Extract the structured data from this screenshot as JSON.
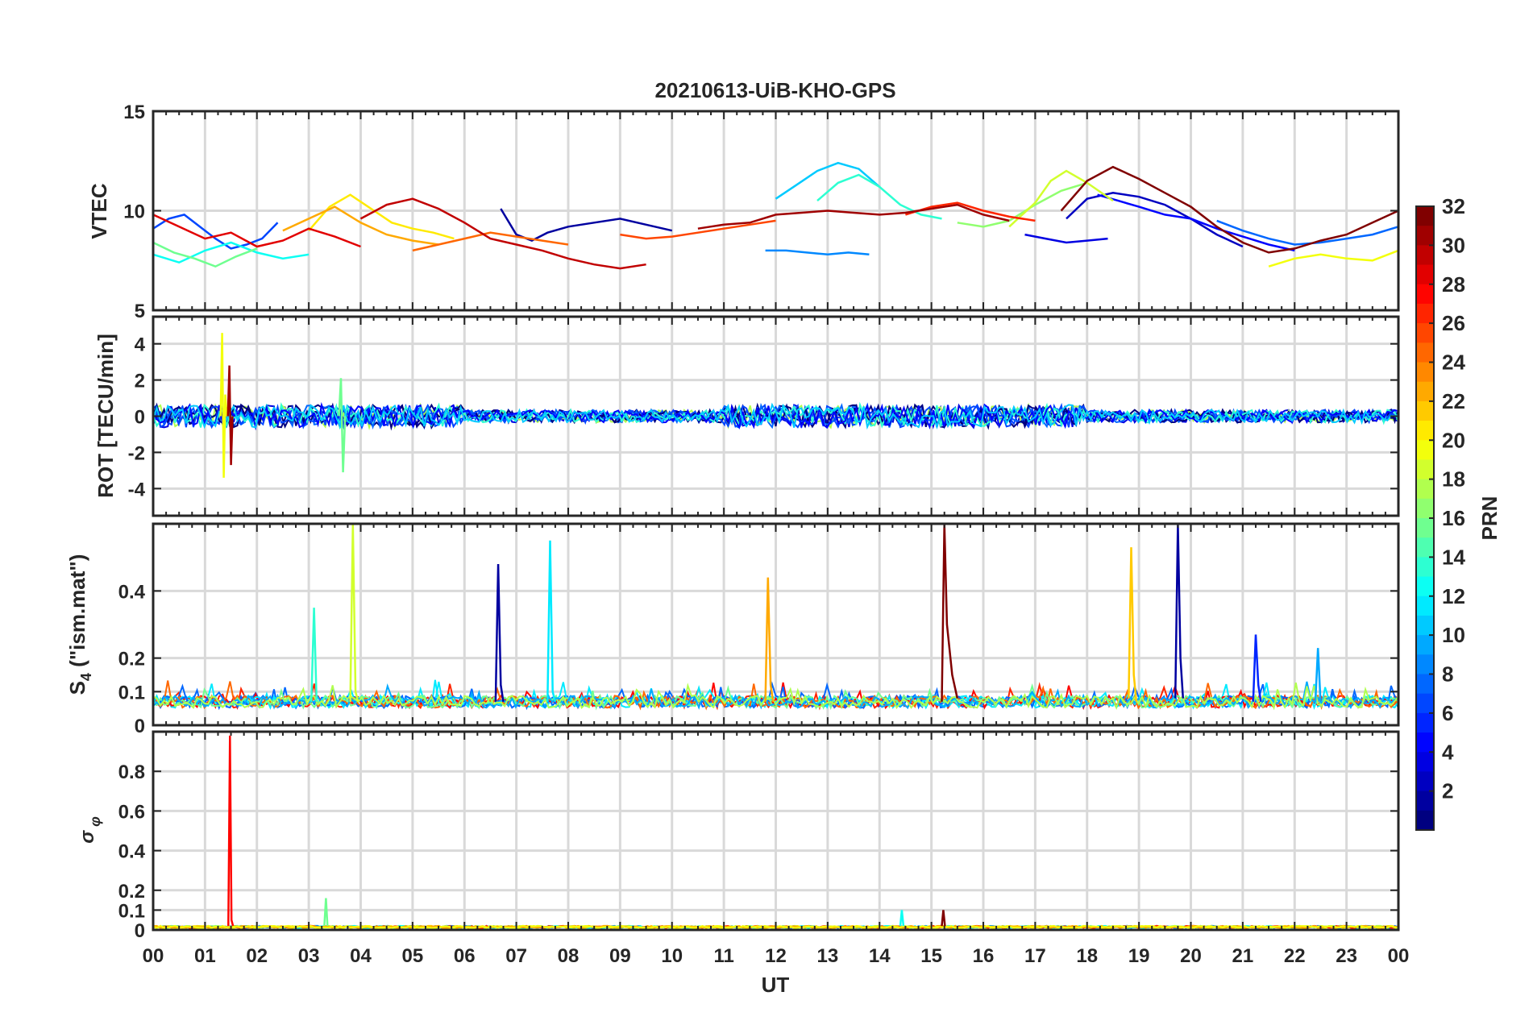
{
  "title": "20210613-UiB-KHO-GPS",
  "xlabel": "UT",
  "x_ticks": [
    "00",
    "01",
    "02",
    "03",
    "04",
    "05",
    "06",
    "07",
    "08",
    "09",
    "10",
    "11",
    "12",
    "13",
    "14",
    "15",
    "16",
    "17",
    "18",
    "19",
    "20",
    "21",
    "22",
    "23",
    "00"
  ],
  "colorbar": {
    "label": "PRN",
    "range": [
      1,
      32
    ],
    "ticks": [
      "2",
      "4",
      "6",
      "8",
      "10",
      "12",
      "14",
      "16",
      "18",
      "20",
      "22",
      "24",
      "26",
      "28",
      "30",
      "32"
    ],
    "colormap": "jet"
  },
  "chart_data": [
    {
      "type": "line",
      "panel": "VTEC",
      "ylabel": "VTEC",
      "xlim_hours": [
        0,
        24
      ],
      "ylim": [
        5,
        15
      ],
      "y_ticks": [
        "5",
        "10",
        "15"
      ],
      "grid": true,
      "series": [
        {
          "prn": 2,
          "x": [
            6.7,
            7.0,
            7.3,
            7.6,
            8.0,
            8.5,
            9.0,
            9.5,
            10.0
          ],
          "y": [
            10.1,
            8.8,
            8.5,
            8.9,
            9.2,
            9.4,
            9.6,
            9.3,
            9.0
          ]
        },
        {
          "prn": 3,
          "x": [
            17.6,
            18.0,
            18.5,
            19.0,
            19.5,
            20.0,
            20.5,
            21.0
          ],
          "y": [
            9.6,
            10.6,
            10.9,
            10.7,
            10.3,
            9.6,
            8.8,
            8.2
          ]
        },
        {
          "prn": 4,
          "x": [
            16.8,
            17.2,
            17.6,
            18.0,
            18.4
          ],
          "y": [
            8.8,
            8.6,
            8.4,
            8.5,
            8.6
          ]
        },
        {
          "prn": 5,
          "x": [
            18.2,
            18.6,
            19.0,
            19.5,
            20.0,
            20.5,
            21.0,
            21.5,
            22.0
          ],
          "y": [
            10.8,
            10.5,
            10.2,
            9.8,
            9.6,
            9.1,
            8.7,
            8.3,
            8.0
          ]
        },
        {
          "prn": 7,
          "x": [
            0.0,
            0.3,
            0.6,
            0.9,
            1.2,
            1.5,
            1.8,
            2.1,
            2.4
          ],
          "y": [
            9.1,
            9.6,
            9.8,
            9.2,
            8.6,
            8.1,
            8.3,
            8.6,
            9.4
          ]
        },
        {
          "prn": 8,
          "x": [
            20.5,
            21.0,
            21.5,
            22.0,
            22.5,
            23.0,
            23.5,
            24.0
          ],
          "y": [
            9.5,
            9.0,
            8.6,
            8.3,
            8.4,
            8.6,
            8.8,
            9.2
          ]
        },
        {
          "prn": 9,
          "x": [
            11.8,
            12.2,
            12.6,
            13.0,
            13.4,
            13.8
          ],
          "y": [
            8.0,
            8.0,
            7.9,
            7.8,
            7.9,
            7.8
          ]
        },
        {
          "prn": 11,
          "x": [
            12.0,
            12.4,
            12.8,
            13.2,
            13.6,
            14.0
          ],
          "y": [
            10.6,
            11.3,
            12.0,
            12.4,
            12.1,
            11.2
          ]
        },
        {
          "prn": 13,
          "x": [
            0.0,
            0.5,
            1.0,
            1.5,
            2.0,
            2.5,
            3.0
          ],
          "y": [
            7.8,
            7.4,
            8.0,
            8.4,
            7.9,
            7.6,
            7.8
          ]
        },
        {
          "prn": 14,
          "x": [
            12.8,
            13.2,
            13.6,
            14.0,
            14.4,
            14.8,
            15.2
          ],
          "y": [
            10.5,
            11.4,
            11.8,
            11.2,
            10.3,
            9.8,
            9.6
          ]
        },
        {
          "prn": 16,
          "x": [
            0.0,
            0.4,
            0.8,
            1.2,
            1.6,
            2.0
          ],
          "y": [
            8.4,
            7.9,
            7.6,
            7.2,
            7.7,
            8.1
          ]
        },
        {
          "prn": 17,
          "x": [
            15.5,
            16.0,
            16.5,
            17.0,
            17.5,
            18.0
          ],
          "y": [
            9.4,
            9.2,
            9.5,
            10.3,
            11.0,
            11.4
          ]
        },
        {
          "prn": 19,
          "x": [
            16.5,
            17.0,
            17.3,
            17.6,
            18.0,
            18.5
          ],
          "y": [
            9.2,
            10.4,
            11.5,
            12.0,
            11.4,
            10.5
          ]
        },
        {
          "prn": 20,
          "x": [
            21.5,
            22.0,
            22.5,
            23.0,
            23.5,
            24.0
          ],
          "y": [
            7.2,
            7.6,
            7.8,
            7.6,
            7.5,
            8.0
          ]
        },
        {
          "prn": 21,
          "x": [
            3.0,
            3.4,
            3.8,
            4.2,
            4.6,
            5.0,
            5.4,
            5.8
          ],
          "y": [
            9.0,
            10.2,
            10.8,
            10.1,
            9.4,
            9.1,
            8.9,
            8.6
          ]
        },
        {
          "prn": 23,
          "x": [
            2.5,
            3.0,
            3.5,
            4.0,
            4.5,
            5.0,
            5.5
          ],
          "y": [
            9.0,
            9.6,
            10.2,
            9.4,
            8.8,
            8.5,
            8.3
          ]
        },
        {
          "prn": 25,
          "x": [
            5.0,
            5.5,
            6.0,
            6.5,
            7.0,
            7.5,
            8.0
          ],
          "y": [
            8.0,
            8.3,
            8.6,
            8.9,
            8.7,
            8.5,
            8.3
          ]
        },
        {
          "prn": 26,
          "x": [
            9.0,
            9.5,
            10.0,
            10.5,
            11.0,
            11.5,
            12.0
          ],
          "y": [
            8.8,
            8.6,
            8.7,
            8.9,
            9.1,
            9.3,
            9.5
          ]
        },
        {
          "prn": 27,
          "x": [
            14.5,
            15.0,
            15.5,
            16.0,
            16.5,
            17.0
          ],
          "y": [
            9.8,
            10.2,
            10.4,
            10.0,
            9.7,
            9.5
          ]
        },
        {
          "prn": 29,
          "x": [
            0.0,
            0.5,
            1.0,
            1.5,
            2.0,
            2.5,
            3.0,
            3.5,
            4.0
          ],
          "y": [
            9.8,
            9.2,
            8.6,
            8.9,
            8.2,
            8.5,
            9.1,
            8.7,
            8.2
          ]
        },
        {
          "prn": 30,
          "x": [
            4.0,
            4.5,
            5.0,
            5.5,
            6.0,
            6.5,
            7.0,
            7.5,
            8.0,
            8.5,
            9.0,
            9.5
          ],
          "y": [
            9.6,
            10.3,
            10.6,
            10.1,
            9.4,
            8.6,
            8.3,
            8.0,
            7.6,
            7.3,
            7.1,
            7.3
          ]
        },
        {
          "prn": 31,
          "x": [
            10.5,
            11.0,
            11.5,
            12.0,
            12.5,
            13.0,
            13.5,
            14.0,
            14.5,
            15.0,
            15.5,
            16.0,
            16.5
          ],
          "y": [
            9.1,
            9.3,
            9.4,
            9.8,
            9.9,
            10.0,
            9.9,
            9.8,
            9.9,
            10.1,
            10.3,
            9.8,
            9.5
          ]
        },
        {
          "prn": 32,
          "x": [
            17.5,
            18.0,
            18.5,
            19.0,
            19.5,
            20.0,
            20.5,
            21.0,
            21.5,
            22.0,
            22.5,
            23.0,
            23.5,
            24.0
          ],
          "y": [
            10.0,
            11.5,
            12.2,
            11.6,
            10.9,
            10.2,
            9.2,
            8.4,
            7.9,
            8.1,
            8.5,
            8.8,
            9.4,
            10.0
          ]
        }
      ]
    },
    {
      "type": "line",
      "panel": "ROT",
      "ylabel": "ROT [TECU/min]",
      "xlim_hours": [
        0,
        24
      ],
      "ylim": [
        -5.5,
        5.5
      ],
      "y_ticks": [
        "-4",
        "-2",
        "0",
        "2",
        "4"
      ],
      "grid": true,
      "series": [
        {
          "prn": 20,
          "x": [
            1.3,
            1.33,
            1.36,
            1.39,
            1.42
          ],
          "y": [
            0.0,
            4.6,
            -3.4,
            1.2,
            0.0
          ]
        },
        {
          "prn": 31,
          "x": [
            1.44,
            1.47,
            1.5,
            1.53
          ],
          "y": [
            0.0,
            2.8,
            -2.7,
            0.0
          ]
        },
        {
          "prn": 16,
          "x": [
            3.58,
            3.62,
            3.66,
            3.7
          ],
          "y": [
            0.0,
            2.1,
            -3.1,
            0.0
          ]
        }
      ]
    },
    {
      "type": "line",
      "panel": "S4",
      "ylabel": "S4 (\"ism.mat\")",
      "xlim_hours": [
        0,
        24
      ],
      "ylim": [
        0,
        0.6
      ],
      "y_ticks": [
        "0",
        "0.1",
        "0.2",
        "0.4"
      ],
      "grid": true,
      "series": [
        {
          "prn": 14,
          "x": [
            3.05,
            3.1,
            3.15
          ],
          "y": [
            0.07,
            0.35,
            0.07
          ]
        },
        {
          "prn": 19,
          "x": [
            3.8,
            3.85,
            3.9,
            3.95
          ],
          "y": [
            0.07,
            0.6,
            0.1,
            0.07
          ]
        },
        {
          "prn": 2,
          "x": [
            6.6,
            6.65,
            6.7,
            6.75
          ],
          "y": [
            0.07,
            0.48,
            0.12,
            0.07
          ]
        },
        {
          "prn": 12,
          "x": [
            7.6,
            7.65,
            7.7,
            7.75
          ],
          "y": [
            0.07,
            0.55,
            0.1,
            0.07
          ]
        },
        {
          "prn": 23,
          "x": [
            11.8,
            11.85,
            11.9,
            11.95
          ],
          "y": [
            0.07,
            0.44,
            0.12,
            0.07
          ]
        },
        {
          "prn": 32,
          "x": [
            15.2,
            15.25,
            15.3,
            15.4,
            15.5
          ],
          "y": [
            0.07,
            0.6,
            0.3,
            0.15,
            0.08
          ]
        },
        {
          "prn": 22,
          "x": [
            18.8,
            18.85,
            18.9,
            18.95
          ],
          "y": [
            0.08,
            0.53,
            0.15,
            0.07
          ]
        },
        {
          "prn": 2,
          "x": [
            19.7,
            19.75,
            19.8,
            19.85
          ],
          "y": [
            0.08,
            0.6,
            0.2,
            0.08
          ]
        },
        {
          "prn": 6,
          "x": [
            21.2,
            21.25,
            21.3,
            21.35
          ],
          "y": [
            0.07,
            0.27,
            0.12,
            0.07
          ]
        },
        {
          "prn": 10,
          "x": [
            22.4,
            22.45,
            22.5
          ],
          "y": [
            0.07,
            0.23,
            0.07
          ]
        }
      ]
    },
    {
      "type": "line",
      "panel": "sigma_phi",
      "ylabel": "σ φ",
      "xlim_hours": [
        0,
        24
      ],
      "ylim": [
        0,
        1.0
      ],
      "y_ticks": [
        "0",
        "0.1",
        "0.2",
        "0.4",
        "0.6",
        "0.8"
      ],
      "grid": true,
      "series": [
        {
          "prn": 28,
          "x": [
            1.45,
            1.48,
            1.51,
            1.54
          ],
          "y": [
            0.02,
            0.98,
            0.05,
            0.02
          ]
        },
        {
          "prn": 16,
          "x": [
            3.3,
            3.33,
            3.36
          ],
          "y": [
            0.02,
            0.16,
            0.02
          ]
        },
        {
          "prn": 13,
          "x": [
            14.4,
            14.43,
            14.46
          ],
          "y": [
            0.02,
            0.1,
            0.02
          ]
        },
        {
          "prn": 32,
          "x": [
            15.2,
            15.23,
            15.26
          ],
          "y": [
            0.02,
            0.1,
            0.02
          ]
        }
      ]
    }
  ]
}
